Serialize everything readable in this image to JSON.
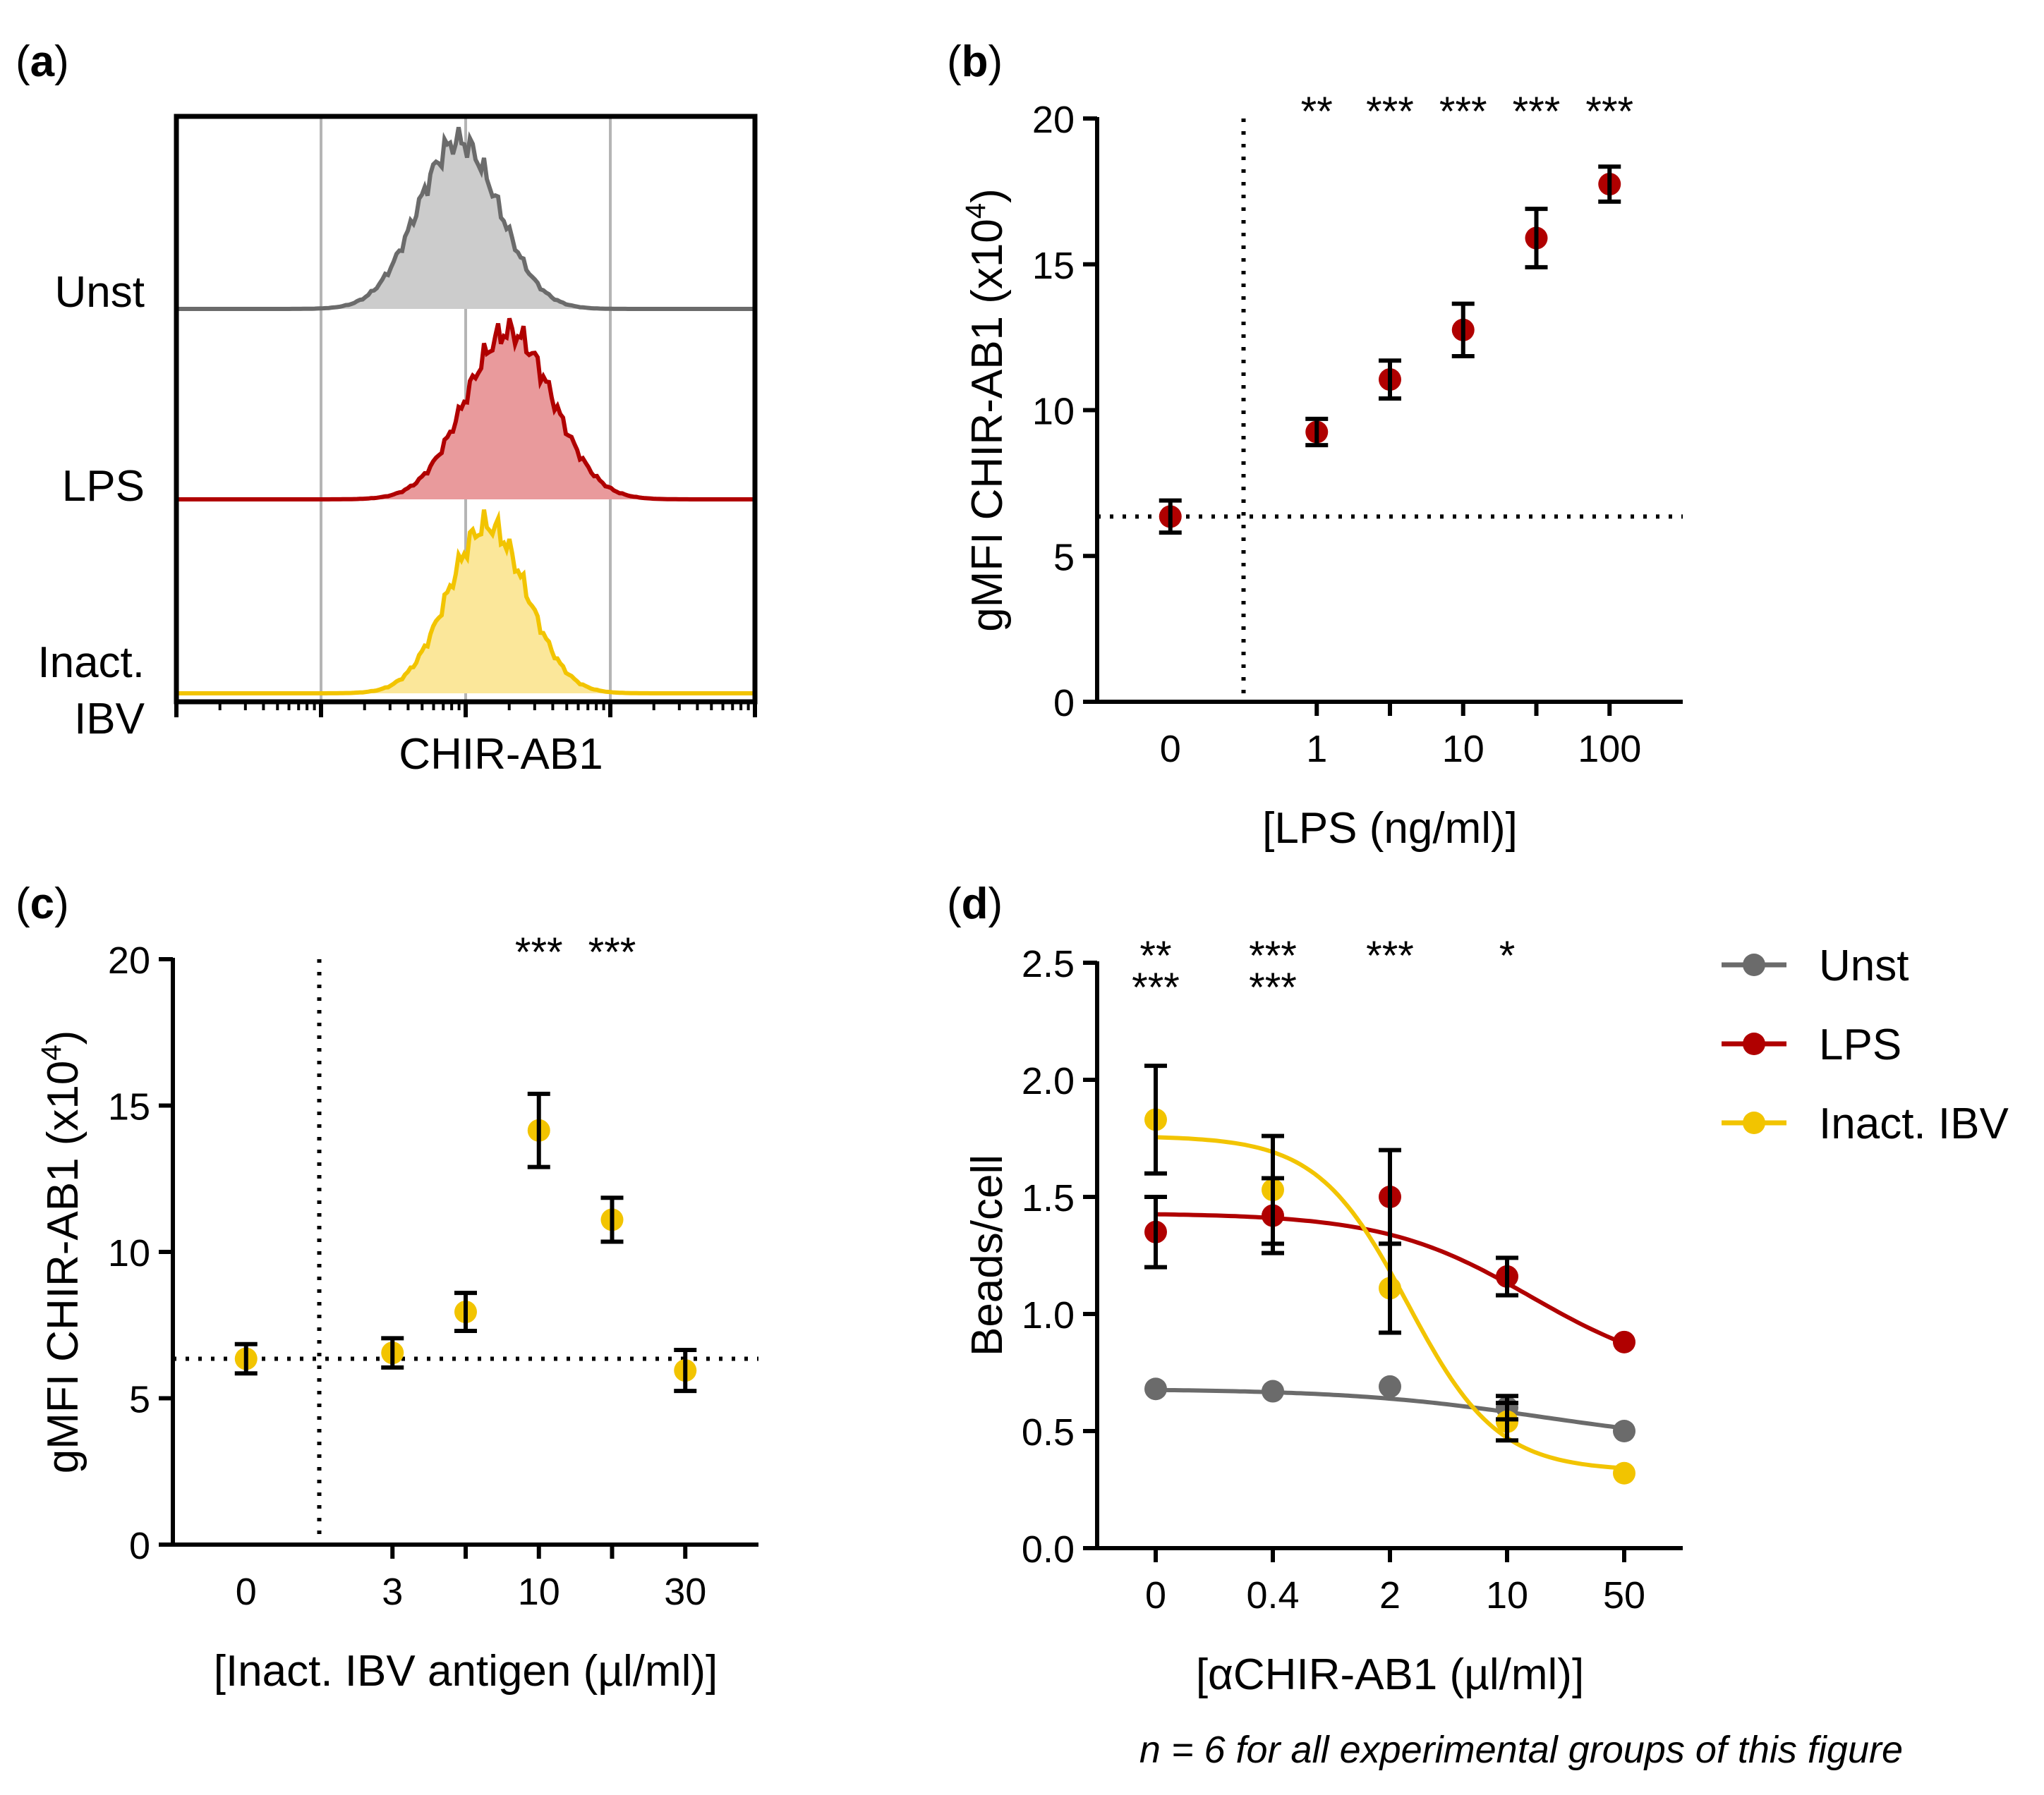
{
  "footnote": "n = 6 for all experimental groups of this figure",
  "colors": {
    "unst": "#6b6b6b",
    "unst_fill": "#cccccc",
    "lps": "#b00000",
    "lps_fill": "#e99a9c",
    "ibv": "#f2c400",
    "ibv_fill": "#fbe79a",
    "axis": "#000000",
    "grid": "#b5b5b5"
  },
  "chart_data": [
    {
      "panel": "(a)",
      "type": "histogram",
      "xlabel": "CHIR-AB1",
      "xscale": "log",
      "x_decades": [
        0,
        4
      ],
      "tracks": [
        {
          "name": "Unst",
          "color_key": "unst",
          "peak_decade": 1.95,
          "sigma": 0.28
        },
        {
          "name": "LPS",
          "color_key": "lps",
          "peak_decade": 2.3,
          "sigma": 0.3
        },
        {
          "name": "Inact.",
          "name2": "IBV",
          "color_key": "ibv",
          "peak_decade": 2.15,
          "sigma": 0.27
        }
      ]
    },
    {
      "panel": "(b)",
      "type": "scatter",
      "xlabel": "[LPS (ng/ml)]",
      "ylabel": "gMFI CHIR-AB1 (x10",
      "ylabel_sup": "4",
      "ylabel_end": ")",
      "ylim": [
        0,
        20
      ],
      "yticks": [
        0,
        5,
        10,
        15,
        20
      ],
      "xticks": [
        {
          "label": "0",
          "pos": 0
        },
        {
          "label": "1",
          "pos": 1
        },
        {
          "label": "10",
          "pos": 2
        },
        {
          "label": "100",
          "pos": 3
        }
      ],
      "x_minor_ticks": [
        1,
        1.5,
        2,
        2.5,
        3
      ],
      "vline_pos": 0.5,
      "hline_value": 6.35,
      "xlim": [
        -0.5,
        3.5
      ],
      "series": [
        {
          "name": "LPS",
          "color_key": "lps",
          "points": [
            {
              "x": 0,
              "y": 6.35,
              "err": 0.55
            },
            {
              "x": 1,
              "y": 9.25,
              "err": 0.45
            },
            {
              "x": 1.5,
              "y": 11.05,
              "err": 0.65
            },
            {
              "x": 2,
              "y": 12.75,
              "err": 0.9
            },
            {
              "x": 2.5,
              "y": 15.9,
              "err": 1.0
            },
            {
              "x": 3,
              "y": 17.75,
              "err": 0.6
            }
          ]
        }
      ],
      "annotations": [
        {
          "text": "**",
          "x": 1,
          "color_key": "axis"
        },
        {
          "text": "***",
          "x": 1.5,
          "color_key": "axis"
        },
        {
          "text": "***",
          "x": 2,
          "color_key": "axis"
        },
        {
          "text": "***",
          "x": 2.5,
          "color_key": "axis"
        },
        {
          "text": "***",
          "x": 3,
          "color_key": "axis"
        }
      ]
    },
    {
      "panel": "(c)",
      "type": "scatter",
      "xlabel": "[Inact. IBV antigen (µl/ml)]",
      "ylabel": "gMFI CHIR-AB1 (x10",
      "ylabel_sup": "4",
      "ylabel_end": ")",
      "ylim": [
        0,
        20
      ],
      "yticks": [
        0,
        5,
        10,
        15,
        20
      ],
      "xticks": [
        {
          "label": "0",
          "pos": 0
        },
        {
          "label": "3",
          "pos": 1
        },
        {
          "label": "10",
          "pos": 2
        },
        {
          "label": "30",
          "pos": 3
        }
      ],
      "x_minor_ticks": [
        1,
        1.5,
        2,
        2.5,
        3
      ],
      "vline_pos": 0.5,
      "hline_value": 6.35,
      "xlim": [
        -0.5,
        3.5
      ],
      "series": [
        {
          "name": "Inact. IBV",
          "color_key": "ibv",
          "points": [
            {
              "x": 0,
              "y": 6.35,
              "err": 0.5
            },
            {
              "x": 1,
              "y": 6.55,
              "err": 0.5
            },
            {
              "x": 1.5,
              "y": 7.95,
              "err": 0.65
            },
            {
              "x": 2,
              "y": 14.15,
              "err": 1.25
            },
            {
              "x": 2.5,
              "y": 11.1,
              "err": 0.75
            },
            {
              "x": 3,
              "y": 5.95,
              "err": 0.7
            }
          ]
        }
      ],
      "annotations": [
        {
          "text": "***",
          "x": 2,
          "color_key": "axis"
        },
        {
          "text": "***",
          "x": 2.5,
          "color_key": "axis"
        }
      ]
    },
    {
      "panel": "(d)",
      "type": "line",
      "xlabel": "[αCHIR-AB1 (µl/ml)]",
      "ylabel": "Beads/cell",
      "ylim": [
        0,
        2.5
      ],
      "yticks": [
        0.0,
        0.5,
        1.0,
        1.5,
        2.0,
        2.5
      ],
      "ytick_labels": [
        "0.0",
        "0.5",
        "1.0",
        "1.5",
        "2.0",
        "2.5"
      ],
      "xticks": [
        {
          "label": "0",
          "pos": 0
        },
        {
          "label": "0.4",
          "pos": 1
        },
        {
          "label": "2",
          "pos": 2
        },
        {
          "label": "10",
          "pos": 3
        },
        {
          "label": "50",
          "pos": 4
        }
      ],
      "xlim": [
        -0.5,
        4.5
      ],
      "legend": [
        "Unst",
        "LPS",
        "Inact. IBV"
      ],
      "legend_position": "right",
      "series": [
        {
          "name": "Unst",
          "color_key": "unst",
          "points": [
            {
              "x": 0,
              "y": 0.68,
              "err": 0
            },
            {
              "x": 1,
              "y": 0.67,
              "err": 0
            },
            {
              "x": 2,
              "y": 0.69,
              "err": 0
            },
            {
              "x": 3,
              "y": 0.6,
              "err": 0.05
            },
            {
              "x": 4,
              "y": 0.5,
              "err": 0
            }
          ],
          "fit": {
            "top": 0.68,
            "bottom": 0.44,
            "mid": 3.3,
            "slope": 1.2
          }
        },
        {
          "name": "LPS",
          "color_key": "lps",
          "points": [
            {
              "x": 0,
              "y": 1.35,
              "err": 0.15
            },
            {
              "x": 1,
              "y": 1.42,
              "err": 0.16
            },
            {
              "x": 2,
              "y": 1.5,
              "err": 0.2
            },
            {
              "x": 3,
              "y": 1.16,
              "err": 0.08
            },
            {
              "x": 4,
              "y": 0.88,
              "err": 0
            }
          ],
          "fit": {
            "top": 1.43,
            "bottom": 0.72,
            "mid": 3.2,
            "slope": 1.6
          }
        },
        {
          "name": "Inact. IBV",
          "color_key": "ibv",
          "points": [
            {
              "x": 0,
              "y": 1.83,
              "err": 0.23
            },
            {
              "x": 1,
              "y": 1.53,
              "err": 0.23
            },
            {
              "x": 2,
              "y": 1.11,
              "err": 0.19
            },
            {
              "x": 3,
              "y": 0.54,
              "err": 0.08
            },
            {
              "x": 4,
              "y": 0.32,
              "err": 0
            }
          ],
          "fit": {
            "top": 1.76,
            "bottom": 0.33,
            "mid": 2.15,
            "slope": 2.6
          }
        }
      ],
      "annotations": [
        {
          "text": "**",
          "x": 0,
          "row": 0,
          "color_key": "lps"
        },
        {
          "text": "***",
          "x": 1,
          "row": 0,
          "color_key": "lps"
        },
        {
          "text": "***",
          "x": 2,
          "row": 0,
          "color_key": "lps"
        },
        {
          "text": "*",
          "x": 3,
          "row": 0,
          "color_key": "lps"
        },
        {
          "text": "***",
          "x": 0,
          "row": 1,
          "color_key": "ibv"
        },
        {
          "text": "***",
          "x": 1,
          "row": 1,
          "color_key": "ibv"
        }
      ]
    }
  ]
}
